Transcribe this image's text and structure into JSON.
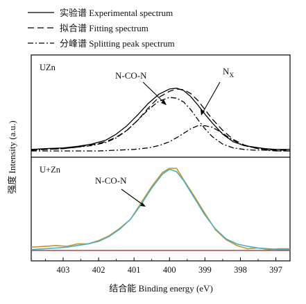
{
  "chart_data": [
    {
      "type": "line",
      "panel_label": "UZn",
      "xlabel": "结合能 Binding energy (eV)",
      "ylabel": "强度 Intensity (a.u.)",
      "x_reversed": true,
      "xlim": [
        403.9,
        396.6
      ],
      "ylim": [
        0,
        1.0
      ],
      "x_ticks": [
        403,
        402,
        401,
        400,
        399,
        398,
        397
      ],
      "legend": {
        "position": "top-left-outside",
        "entries": [
          {
            "label": "实验谱 Experimental spectrum",
            "style": "solid"
          },
          {
            "label": "拟合谱 Fitting spectrum",
            "style": "dashed"
          },
          {
            "label": "分峰谱 Splitting peak spectrum",
            "style": "dashdot"
          }
        ]
      },
      "annotations": [
        {
          "text": "N-CO-N",
          "arrow_to": {
            "x": 400.3,
            "y": 0.62
          }
        },
        {
          "text": "N",
          "subscript": "X",
          "arrow_to": {
            "x": 399.1,
            "y": 0.37
          }
        }
      ],
      "series": [
        {
          "name": "实验谱 Experimental spectrum",
          "style": "solid",
          "color": "#000000",
          "x": [
            403.9,
            403.5,
            403.0,
            402.6,
            402.2,
            401.8,
            401.5,
            401.2,
            400.9,
            400.6,
            400.3,
            400.0,
            399.8,
            399.6,
            399.4,
            399.2,
            399.0,
            398.8,
            398.5,
            398.2,
            397.9,
            397.6,
            397.3,
            397.0,
            396.8,
            396.6
          ],
          "y": [
            0.02,
            0.03,
            0.04,
            0.06,
            0.09,
            0.14,
            0.22,
            0.33,
            0.47,
            0.62,
            0.74,
            0.81,
            0.82,
            0.79,
            0.71,
            0.6,
            0.48,
            0.37,
            0.22,
            0.12,
            0.07,
            0.05,
            0.03,
            0.02,
            0.02,
            0.02
          ]
        },
        {
          "name": "拟合谱 Fitting spectrum",
          "style": "dashed",
          "color": "#000000",
          "x": [
            403.9,
            403.5,
            403.0,
            402.6,
            402.2,
            401.8,
            401.5,
            401.2,
            400.9,
            400.6,
            400.3,
            400.0,
            399.8,
            399.6,
            399.4,
            399.2,
            399.0,
            398.8,
            398.5,
            398.2,
            397.9,
            397.6,
            397.3,
            397.0,
            396.8,
            396.6
          ],
          "y": [
            0.01,
            0.02,
            0.03,
            0.05,
            0.08,
            0.12,
            0.18,
            0.27,
            0.4,
            0.56,
            0.7,
            0.78,
            0.81,
            0.8,
            0.75,
            0.66,
            0.54,
            0.42,
            0.27,
            0.15,
            0.08,
            0.04,
            0.02,
            0.01,
            0.01,
            0.01
          ]
        },
        {
          "name": "分峰谱 N-CO-N",
          "style": "dashdot",
          "color": "#000000",
          "x": [
            403.9,
            403.5,
            403.0,
            402.6,
            402.2,
            401.8,
            401.5,
            401.2,
            400.9,
            400.6,
            400.3,
            400.0,
            399.8,
            399.6,
            399.4,
            399.2,
            399.0,
            398.8,
            398.5,
            398.2,
            397.9,
            397.6,
            397.3,
            397.0,
            396.8,
            396.6
          ],
          "y": [
            0.01,
            0.02,
            0.03,
            0.05,
            0.07,
            0.11,
            0.17,
            0.27,
            0.4,
            0.54,
            0.65,
            0.7,
            0.69,
            0.64,
            0.54,
            0.41,
            0.29,
            0.19,
            0.09,
            0.04,
            0.02,
            0.01,
            0.01,
            0.0,
            0.0,
            0.0
          ]
        },
        {
          "name": "分峰谱 Nx",
          "style": "dashdot",
          "color": "#000000",
          "x": [
            403.9,
            403.0,
            402.0,
            401.5,
            401.0,
            400.6,
            400.3,
            400.0,
            399.7,
            399.4,
            399.2,
            399.0,
            398.8,
            398.6,
            398.4,
            398.2,
            398.0,
            397.8,
            397.5,
            397.2,
            396.9,
            396.6
          ],
          "y": [
            0.0,
            0.0,
            0.0,
            0.01,
            0.02,
            0.04,
            0.07,
            0.12,
            0.2,
            0.29,
            0.33,
            0.33,
            0.31,
            0.26,
            0.2,
            0.14,
            0.09,
            0.06,
            0.03,
            0.01,
            0.0,
            0.0
          ]
        }
      ]
    },
    {
      "type": "line",
      "panel_label": "U+Zn",
      "xlabel": "结合能 Binding energy (eV)",
      "ylabel": "强度 Intensity (a.u.)",
      "x_reversed": true,
      "xlim": [
        403.9,
        396.6
      ],
      "ylim": [
        0,
        1.0
      ],
      "x_ticks": [
        403,
        402,
        401,
        400,
        399,
        398,
        397
      ],
      "annotations": [
        {
          "text": "N-CO-N",
          "arrow_to": {
            "x": 400.7,
            "y": 0.5
          }
        }
      ],
      "series": [
        {
          "name": "experimental",
          "style": "solid",
          "color": "#c8922a",
          "x": [
            403.9,
            403.5,
            403.2,
            402.9,
            402.6,
            402.3,
            402.0,
            401.7,
            401.4,
            401.1,
            400.8,
            400.5,
            400.2,
            400.0,
            399.8,
            399.6,
            399.3,
            399.0,
            398.7,
            398.4,
            398.1,
            397.8,
            397.5,
            397.2,
            396.9,
            396.6
          ],
          "y": [
            0.04,
            0.05,
            0.06,
            0.05,
            0.08,
            0.08,
            0.12,
            0.18,
            0.27,
            0.38,
            0.58,
            0.78,
            0.95,
            1.0,
            1.0,
            0.86,
            0.66,
            0.45,
            0.25,
            0.13,
            0.06,
            0.02,
            0.03,
            0.01,
            0.02,
            0.02
          ]
        },
        {
          "name": "fitting",
          "style": "solid",
          "color": "#48b0c0",
          "x": [
            403.9,
            403.5,
            403.2,
            402.9,
            402.6,
            402.3,
            402.0,
            401.7,
            401.4,
            401.1,
            400.8,
            400.5,
            400.2,
            400.0,
            399.8,
            399.6,
            399.3,
            399.0,
            398.7,
            398.4,
            398.1,
            397.8,
            397.5,
            397.2,
            396.9,
            396.6
          ],
          "y": [
            0.01,
            0.02,
            0.03,
            0.04,
            0.06,
            0.08,
            0.11,
            0.17,
            0.26,
            0.38,
            0.56,
            0.76,
            0.93,
            0.99,
            0.96,
            0.85,
            0.64,
            0.43,
            0.26,
            0.14,
            0.08,
            0.05,
            0.03,
            0.02,
            0.01,
            0.01
          ]
        },
        {
          "name": "baseline",
          "style": "solid",
          "color": "#a05050",
          "x": [
            403.9,
            396.6
          ],
          "y": [
            0.0,
            0.0
          ]
        }
      ]
    }
  ]
}
